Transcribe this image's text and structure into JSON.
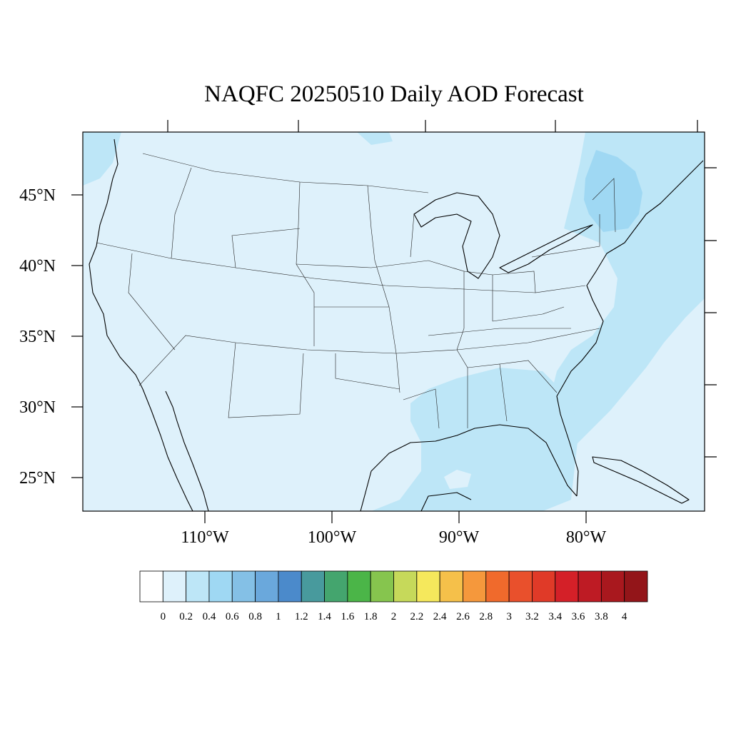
{
  "title": "NAQFC 20250510 Daily AOD Forecast",
  "map": {
    "lat_labels": [
      {
        "lat": 45,
        "label": "45°N"
      },
      {
        "lat": 40,
        "label": "40°N"
      },
      {
        "lat": 35,
        "label": "35°N"
      },
      {
        "lat": 30,
        "label": "30°N"
      },
      {
        "lat": 25,
        "label": "25°N"
      }
    ],
    "lon_labels": [
      {
        "lon": -110,
        "label": "110°W"
      },
      {
        "lon": -100,
        "label": "100°W"
      },
      {
        "lon": -90,
        "label": "90°W"
      },
      {
        "lon": -80,
        "label": "80°W"
      }
    ],
    "aod_fields": [
      {
        "region": "background-land-and-sea",
        "aod_range": "0.0-0.2"
      },
      {
        "region": "pacific-coast-northwest",
        "aod_range": "0.2-0.4"
      },
      {
        "region": "atlantic-and-east-coast",
        "aod_range": "0.2-0.4"
      },
      {
        "region": "gulf-of-mexico-and-southeast",
        "aod_range": "0.2-0.4"
      },
      {
        "region": "new-england-maine",
        "aod_range": "0.4-0.6"
      }
    ]
  },
  "colorbar": {
    "colors": [
      "#ffffff",
      "#def1fb",
      "#bde6f7",
      "#9fd8f3",
      "#84c0e6",
      "#6aa8dc",
      "#4b8acb",
      "#489a9d",
      "#44a56e",
      "#4bb548",
      "#86c54e",
      "#c6d95a",
      "#f5e85c",
      "#f5c04a",
      "#f5983c",
      "#f06a2c",
      "#e9502c",
      "#e03a28",
      "#d42028",
      "#be1b24",
      "#a9181e",
      "#931519"
    ],
    "labels": [
      "0",
      "0.2",
      "0.4",
      "0.6",
      "0.8",
      "1",
      "1.2",
      "1.4",
      "1.6",
      "1.8",
      "2",
      "2.2",
      "2.4",
      "2.6",
      "2.8",
      "3",
      "3.2",
      "3.4",
      "3.6",
      "3.8",
      "4"
    ]
  }
}
